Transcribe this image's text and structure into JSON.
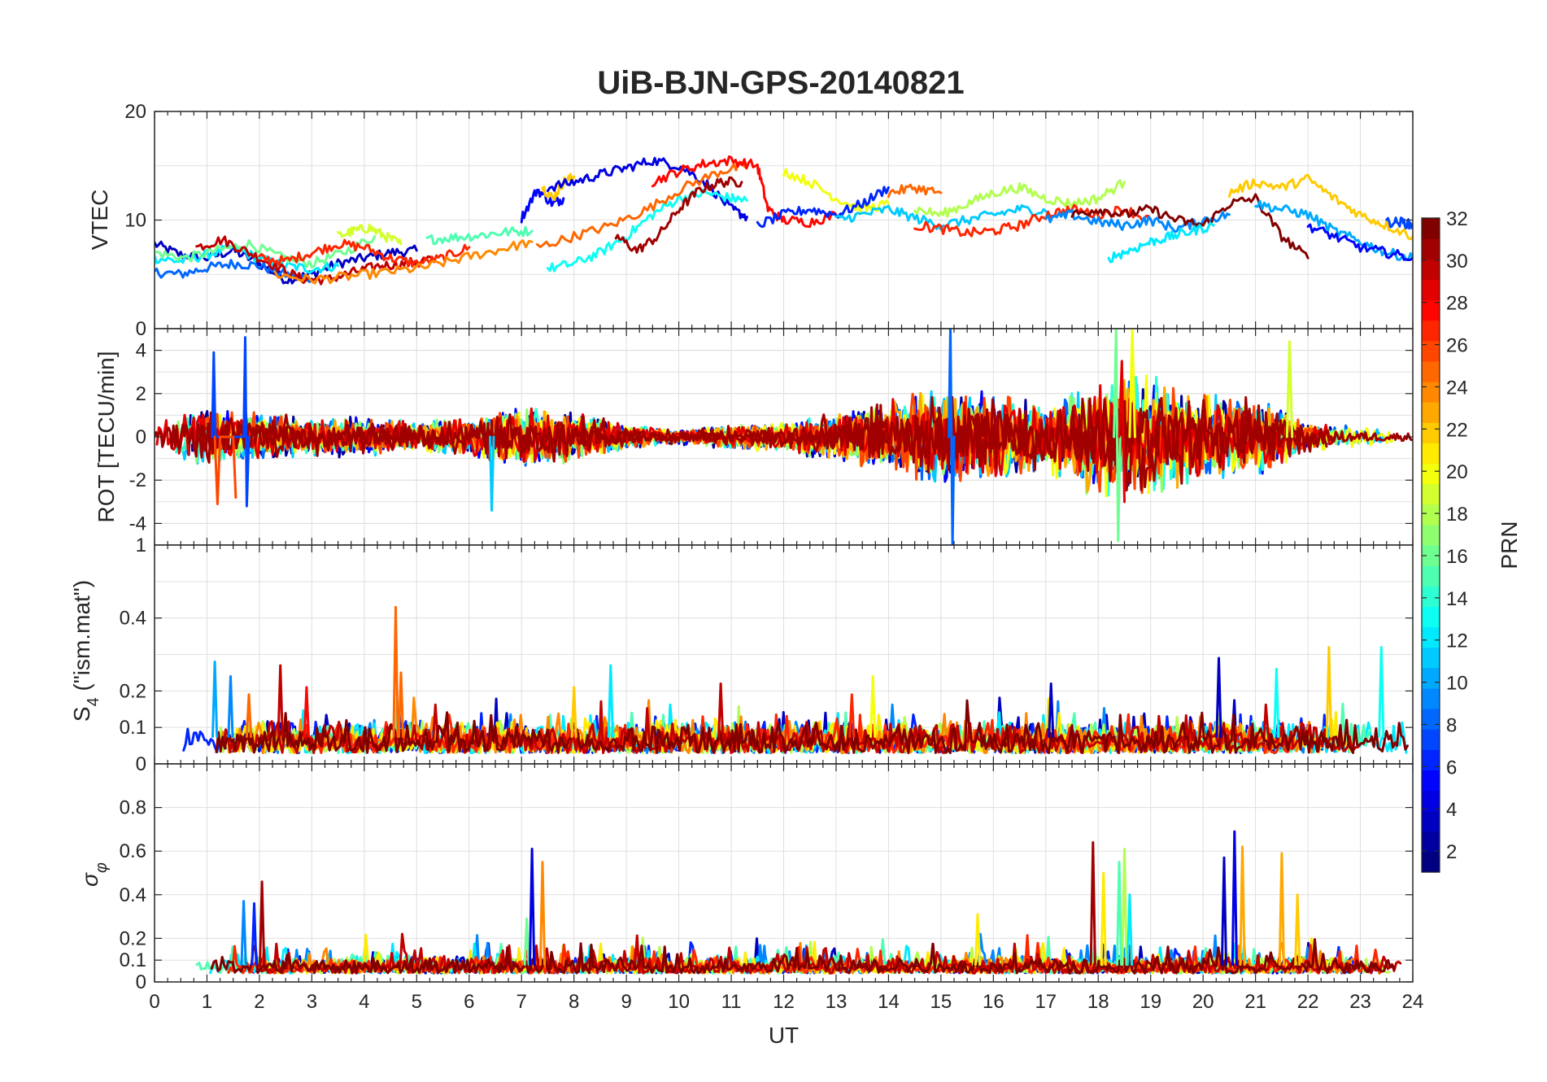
{
  "figure": {
    "title": "UiB-BJN-GPS-20140821"
  },
  "chart_data": [
    {
      "type": "line",
      "panel": "vtec",
      "ylabel": "VTEC",
      "xlim": [
        0,
        24
      ],
      "ylim": [
        0,
        20
      ],
      "yticks": [
        10,
        20
      ],
      "grid": true,
      "series": [
        {
          "prn": 3,
          "x": [
            0,
            0.5,
            1,
            1.5,
            2,
            2.5,
            3,
            3.5,
            4,
            4.5,
            5
          ],
          "y": [
            7.8,
            6.8,
            6.5,
            7.2,
            6.0,
            4.5,
            5.0,
            6.0,
            6.5,
            7.0,
            7.2
          ]
        },
        {
          "prn": 8,
          "x": [
            0,
            0.5,
            1,
            1.5,
            2,
            2.5,
            3
          ],
          "y": [
            5.2,
            5.0,
            5.6,
            6.0,
            5.8,
            5.0,
            4.6
          ]
        },
        {
          "prn": 12,
          "x": [
            0,
            0.5,
            1,
            1.5,
            2,
            2.5,
            3,
            3.5
          ],
          "y": [
            6.5,
            6.2,
            6.8,
            7.5,
            6.4,
            5.8,
            5.5,
            5.8
          ]
        },
        {
          "prn": 16,
          "x": [
            0,
            0.6,
            1.2,
            1.8,
            2.4,
            3.0,
            3.6,
            4.2
          ],
          "y": [
            7.0,
            6.5,
            7.2,
            7.8,
            6.6,
            6.0,
            7.0,
            8.5
          ]
        },
        {
          "prn": 30,
          "x": [
            0.8,
            1.3,
            1.8,
            2.3,
            2.8,
            3.3,
            3.8,
            4.3,
            4.8,
            5.3
          ],
          "y": [
            7.5,
            8.2,
            7.0,
            5.8,
            4.6,
            4.5,
            5.2,
            5.8,
            6.0,
            6.5
          ]
        },
        {
          "prn": 27,
          "x": [
            2.0,
            2.5,
            3.0,
            3.5,
            4.0,
            4.5,
            5.0,
            5.5,
            6.0
          ],
          "y": [
            6.5,
            6.2,
            7.0,
            7.8,
            7.5,
            6.5,
            6.0,
            6.5,
            7.5
          ]
        },
        {
          "prn": 24,
          "x": [
            2.3,
            3.0,
            3.7,
            4.4,
            5.1,
            5.8,
            6.5,
            7.2
          ],
          "y": [
            5.0,
            4.5,
            4.8,
            5.2,
            5.6,
            6.4,
            7.2,
            8.0
          ]
        },
        {
          "prn": 19,
          "x": [
            3.5,
            3.8,
            4.1,
            4.4,
            4.7
          ],
          "y": [
            8.5,
            9.0,
            9.3,
            8.5,
            7.8
          ]
        },
        {
          "prn": 15,
          "x": [
            5.2,
            5.7,
            6.2,
            6.7,
            7.2
          ],
          "y": [
            8.2,
            8.4,
            8.6,
            8.9,
            9.0
          ]
        },
        {
          "prn": 5,
          "x": [
            7.0,
            7.3,
            7.6,
            7.8
          ],
          "y": [
            10.2,
            12.8,
            11.5,
            12.0
          ]
        },
        {
          "prn": 22,
          "x": [
            7.4,
            7.6,
            7.8,
            8.0
          ],
          "y": [
            13.0,
            12.0,
            13.5,
            14.0
          ]
        },
        {
          "prn": 4,
          "x": [
            7.5,
            8.0,
            8.5,
            9.0,
            9.5,
            10.0,
            10.5,
            11.0,
            11.3
          ],
          "y": [
            13.0,
            13.5,
            14.2,
            14.8,
            15.5,
            15.0,
            13.5,
            11.0,
            10.3
          ]
        },
        {
          "prn": 13,
          "x": [
            7.5,
            8.0,
            8.5,
            9.0,
            9.5,
            10.0,
            10.5,
            11.0,
            11.3
          ],
          "y": [
            5.5,
            6.0,
            7.0,
            8.5,
            10.5,
            12.0,
            12.5,
            12.0,
            11.8
          ]
        },
        {
          "prn": 25,
          "x": [
            7.3,
            8.0,
            8.7,
            9.4,
            10.1,
            10.8,
            11.3
          ],
          "y": [
            7.5,
            8.5,
            9.5,
            11.0,
            13.0,
            14.5,
            15.0
          ]
        },
        {
          "prn": 31,
          "x": [
            8.8,
            9.2,
            9.6,
            10.0,
            10.4,
            10.8,
            11.2
          ],
          "y": [
            8.5,
            7.2,
            8.5,
            11.0,
            12.8,
            13.5,
            13.5
          ]
        },
        {
          "prn": 28,
          "x": [
            9.5,
            10.0,
            10.5,
            11.0,
            11.5,
            11.7,
            12.0,
            12.5,
            13.0
          ],
          "y": [
            13.5,
            14.5,
            15.2,
            15.5,
            15.0,
            11.0,
            10.0,
            9.8,
            10.5
          ]
        },
        {
          "prn": 20,
          "x": [
            12.0,
            12.5,
            13.0,
            13.5,
            14.0
          ],
          "y": [
            14.5,
            13.5,
            12.0,
            11.0,
            11.5
          ]
        },
        {
          "prn": 6,
          "x": [
            11.5,
            12.0,
            12.5,
            13.0,
            13.5,
            14.0
          ],
          "y": [
            9.5,
            10.5,
            11.0,
            10.5,
            11.5,
            13.0
          ]
        },
        {
          "prn": 25,
          "x": [
            14.0,
            14.5,
            15.0
          ],
          "y": [
            12.5,
            13.0,
            12.5
          ]
        },
        {
          "prn": 11,
          "x": [
            13.0,
            13.5,
            14.0,
            14.5,
            15.0,
            15.5,
            16.0,
            16.5,
            17.0
          ],
          "y": [
            10.0,
            10.5,
            11.0,
            10.2,
            9.5,
            10.0,
            10.5,
            11.0,
            10.8
          ]
        },
        {
          "prn": 18,
          "x": [
            14.5,
            15.0,
            15.5,
            16.0,
            16.5,
            17.0,
            17.5,
            18.0,
            18.5
          ],
          "y": [
            11.0,
            10.5,
            11.5,
            12.5,
            13.0,
            12.0,
            11.5,
            12.0,
            13.5
          ]
        },
        {
          "prn": 27,
          "x": [
            14.5,
            15.0,
            15.5,
            16.0,
            16.5,
            17.0,
            17.5,
            18.0,
            18.5,
            19.0
          ],
          "y": [
            9.5,
            9.2,
            8.8,
            9.0,
            9.5,
            10.5,
            11.0,
            10.5,
            11.0,
            10.0
          ]
        },
        {
          "prn": 9,
          "x": [
            17.0,
            17.5,
            18.0,
            18.5,
            19.0,
            19.5,
            20.0,
            20.5
          ],
          "y": [
            10.0,
            10.5,
            9.8,
            9.5,
            10.0,
            9.2,
            10.0,
            10.5
          ]
        },
        {
          "prn": 32,
          "x": [
            17.5,
            18.0,
            18.5,
            19.0,
            19.5,
            20.0,
            20.5,
            21.0,
            21.5,
            22.0
          ],
          "y": [
            10.5,
            11.0,
            10.5,
            11.0,
            10.0,
            9.5,
            11.5,
            12.0,
            8.5,
            6.5
          ]
        },
        {
          "prn": 12,
          "x": [
            18.2,
            18.6,
            19.0,
            19.4,
            19.8,
            20.2
          ],
          "y": [
            6.5,
            7.2,
            8.0,
            8.5,
            9.0,
            9.5
          ]
        },
        {
          "prn": 22,
          "x": [
            20.5,
            21.0,
            21.5,
            22.0,
            22.5,
            23.0,
            23.5,
            24.0
          ],
          "y": [
            12.5,
            13.5,
            13.0,
            13.8,
            12.0,
            10.5,
            9.5,
            8.5
          ]
        },
        {
          "prn": 10,
          "x": [
            21.0,
            21.5,
            22.0,
            22.5,
            23.0,
            23.5,
            24.0
          ],
          "y": [
            11.5,
            11.0,
            10.5,
            9.0,
            8.0,
            7.0,
            6.5
          ]
        },
        {
          "prn": 5,
          "x": [
            22.0,
            22.5,
            23.0,
            23.5,
            24.0
          ],
          "y": [
            9.5,
            8.5,
            7.5,
            7.0,
            6.5
          ]
        },
        {
          "prn": 7,
          "x": [
            23.5,
            23.8,
            24.0
          ],
          "y": [
            9.8,
            9.8,
            9.5
          ]
        }
      ]
    },
    {
      "type": "line",
      "panel": "rot",
      "ylabel": "ROT [TECU/min]",
      "xlim": [
        0,
        24
      ],
      "ylim": [
        -5,
        5
      ],
      "yticks": [
        -4,
        -2,
        0,
        2,
        4
      ],
      "ytick_labels": [
        "-4",
        "-2",
        "0",
        "2",
        "4"
      ],
      "top_tick_label": "0",
      "grid": true,
      "series": [
        {
          "prn": 7,
          "x": [
            1.1,
            1.13,
            1.16,
            1.7,
            1.73,
            1.76,
            1.8
          ],
          "y": [
            0,
            3.9,
            0,
            0,
            4.6,
            -3.2,
            0
          ]
        },
        {
          "prn": 26,
          "x": [
            1.15,
            1.2,
            1.25,
            1.5,
            1.55
          ],
          "y": [
            0,
            -3.1,
            0,
            0,
            -2.8
          ]
        },
        {
          "prn": 8,
          "x": [
            15.15,
            15.18,
            15.22,
            15.25
          ],
          "y": [
            0,
            5.0,
            -5.0,
            0
          ]
        },
        {
          "prn": 16,
          "x": [
            18.3,
            18.34,
            18.38,
            18.42
          ],
          "y": [
            0,
            5.0,
            -4.8,
            0
          ]
        },
        {
          "prn": 20,
          "x": [
            18.6,
            18.65,
            18.7
          ],
          "y": [
            0,
            5.0,
            0
          ]
        },
        {
          "prn": 29,
          "x": [
            18.4,
            18.45,
            18.5
          ],
          "y": [
            0,
            3.5,
            -3.0
          ]
        },
        {
          "prn": 19,
          "x": [
            21.6,
            21.65,
            21.7
          ],
          "y": [
            0,
            4.4,
            0
          ]
        },
        {
          "prn": 11,
          "x": [
            6.4,
            6.43,
            6.47
          ],
          "y": [
            0,
            -3.4,
            0
          ]
        }
      ],
      "envelope": {
        "description": "",
        "x": [
          0,
          1,
          2,
          3,
          4,
          5,
          6,
          7,
          8,
          9,
          10,
          11,
          12,
          13,
          14,
          15,
          16,
          17,
          18,
          19,
          20,
          21,
          22,
          23,
          24
        ],
        "amplitude": [
          0.9,
          1.2,
          1.0,
          0.8,
          0.8,
          0.6,
          0.8,
          1.3,
          1.0,
          0.5,
          0.3,
          0.5,
          0.6,
          1.0,
          1.5,
          2.0,
          1.8,
          1.4,
          2.5,
          2.4,
          1.8,
          1.6,
          0.6,
          0.4,
          0.3
        ]
      }
    },
    {
      "type": "line",
      "panel": "s4",
      "ylabel": "S4 (\"ism.mat\")",
      "xlim": [
        0,
        24
      ],
      "ylim": [
        0,
        0.6
      ],
      "yticks": [
        0,
        0.1,
        0.2,
        0.4
      ],
      "ytick_labels": [
        "0",
        "0.1",
        "0.2",
        "0.4"
      ],
      "top_tick_label": "1",
      "grid": true,
      "spikes": [
        {
          "prn": 10,
          "x": 1.15,
          "y": 0.28
        },
        {
          "prn": 9,
          "x": 1.45,
          "y": 0.24
        },
        {
          "prn": 25,
          "x": 1.8,
          "y": 0.19
        },
        {
          "prn": 30,
          "x": 2.4,
          "y": 0.27
        },
        {
          "prn": 28,
          "x": 2.9,
          "y": 0.21
        },
        {
          "prn": 25,
          "x": 4.6,
          "y": 0.43
        },
        {
          "prn": 25,
          "x": 4.7,
          "y": 0.25
        },
        {
          "prn": 22,
          "x": 8.0,
          "y": 0.21
        },
        {
          "prn": 12,
          "x": 8.7,
          "y": 0.27
        },
        {
          "prn": 30,
          "x": 10.8,
          "y": 0.22
        },
        {
          "prn": 27,
          "x": 13.3,
          "y": 0.19
        },
        {
          "prn": 20,
          "x": 13.7,
          "y": 0.24
        },
        {
          "prn": 3,
          "x": 17.1,
          "y": 0.22
        },
        {
          "prn": 3,
          "x": 20.3,
          "y": 0.29
        },
        {
          "prn": 13,
          "x": 21.4,
          "y": 0.26
        },
        {
          "prn": 22,
          "x": 22.4,
          "y": 0.32
        },
        {
          "prn": 13,
          "x": 23.4,
          "y": 0.32
        }
      ],
      "baseline": {
        "x": [
          0,
          24
        ],
        "y_range": [
          0.03,
          0.12
        ]
      }
    },
    {
      "type": "line",
      "panel": "sigma_phi",
      "ylabel": "σφ",
      "xlabel": "UT",
      "xlim": [
        0,
        24
      ],
      "ylim": [
        0,
        1
      ],
      "yticks": [
        0,
        0.1,
        0.2,
        0.4,
        0.6,
        0.8
      ],
      "ytick_labels": [
        "0",
        "0.1",
        "0.2",
        "0.4",
        "0.6",
        "0.8"
      ],
      "xticks": [
        0,
        1,
        2,
        3,
        4,
        5,
        6,
        7,
        8,
        9,
        10,
        11,
        12,
        13,
        14,
        15,
        16,
        17,
        18,
        19,
        20,
        21,
        22,
        23,
        24
      ],
      "xtick_labels": [
        "0",
        "1",
        "2",
        "3",
        "4",
        "5",
        "6",
        "7",
        "8",
        "9",
        "10",
        "11",
        "12",
        "13",
        "14",
        "15",
        "16",
        "17",
        "18",
        "19",
        "20",
        "21",
        "22",
        "23",
        "24"
      ],
      "grid": true,
      "spikes": [
        {
          "prn": 9,
          "x": 1.7,
          "y": 0.37
        },
        {
          "prn": 6,
          "x": 1.9,
          "y": 0.36
        },
        {
          "prn": 31,
          "x": 2.05,
          "y": 0.46
        },
        {
          "prn": 16,
          "x": 7.1,
          "y": 0.29
        },
        {
          "prn": 4,
          "x": 7.2,
          "y": 0.61
        },
        {
          "prn": 24,
          "x": 7.4,
          "y": 0.55
        },
        {
          "prn": 21,
          "x": 15.7,
          "y": 0.31
        },
        {
          "prn": 31,
          "x": 17.9,
          "y": 0.64
        },
        {
          "prn": 21,
          "x": 18.1,
          "y": 0.5
        },
        {
          "prn": 18,
          "x": 18.5,
          "y": 0.61
        },
        {
          "prn": 15,
          "x": 18.4,
          "y": 0.55
        },
        {
          "prn": 12,
          "x": 18.6,
          "y": 0.4
        },
        {
          "prn": 3,
          "x": 20.4,
          "y": 0.57
        },
        {
          "prn": 4,
          "x": 20.6,
          "y": 0.69
        },
        {
          "prn": 23,
          "x": 20.75,
          "y": 0.62
        },
        {
          "prn": 23,
          "x": 21.5,
          "y": 0.59
        },
        {
          "prn": 22,
          "x": 21.8,
          "y": 0.4
        }
      ],
      "baseline": {
        "x": [
          0,
          24
        ],
        "y_range": [
          0.04,
          0.12
        ]
      }
    }
  ],
  "colorbar": {
    "label": "PRN",
    "range": [
      1,
      32
    ],
    "ticks": [
      2,
      4,
      6,
      8,
      10,
      12,
      14,
      16,
      18,
      20,
      22,
      24,
      26,
      28,
      30,
      32
    ],
    "tick_labels": [
      "2",
      "4",
      "6",
      "8",
      "10",
      "12",
      "14",
      "16",
      "18",
      "20",
      "22",
      "24",
      "26",
      "28",
      "30",
      "32"
    ],
    "colormap": "jet"
  }
}
